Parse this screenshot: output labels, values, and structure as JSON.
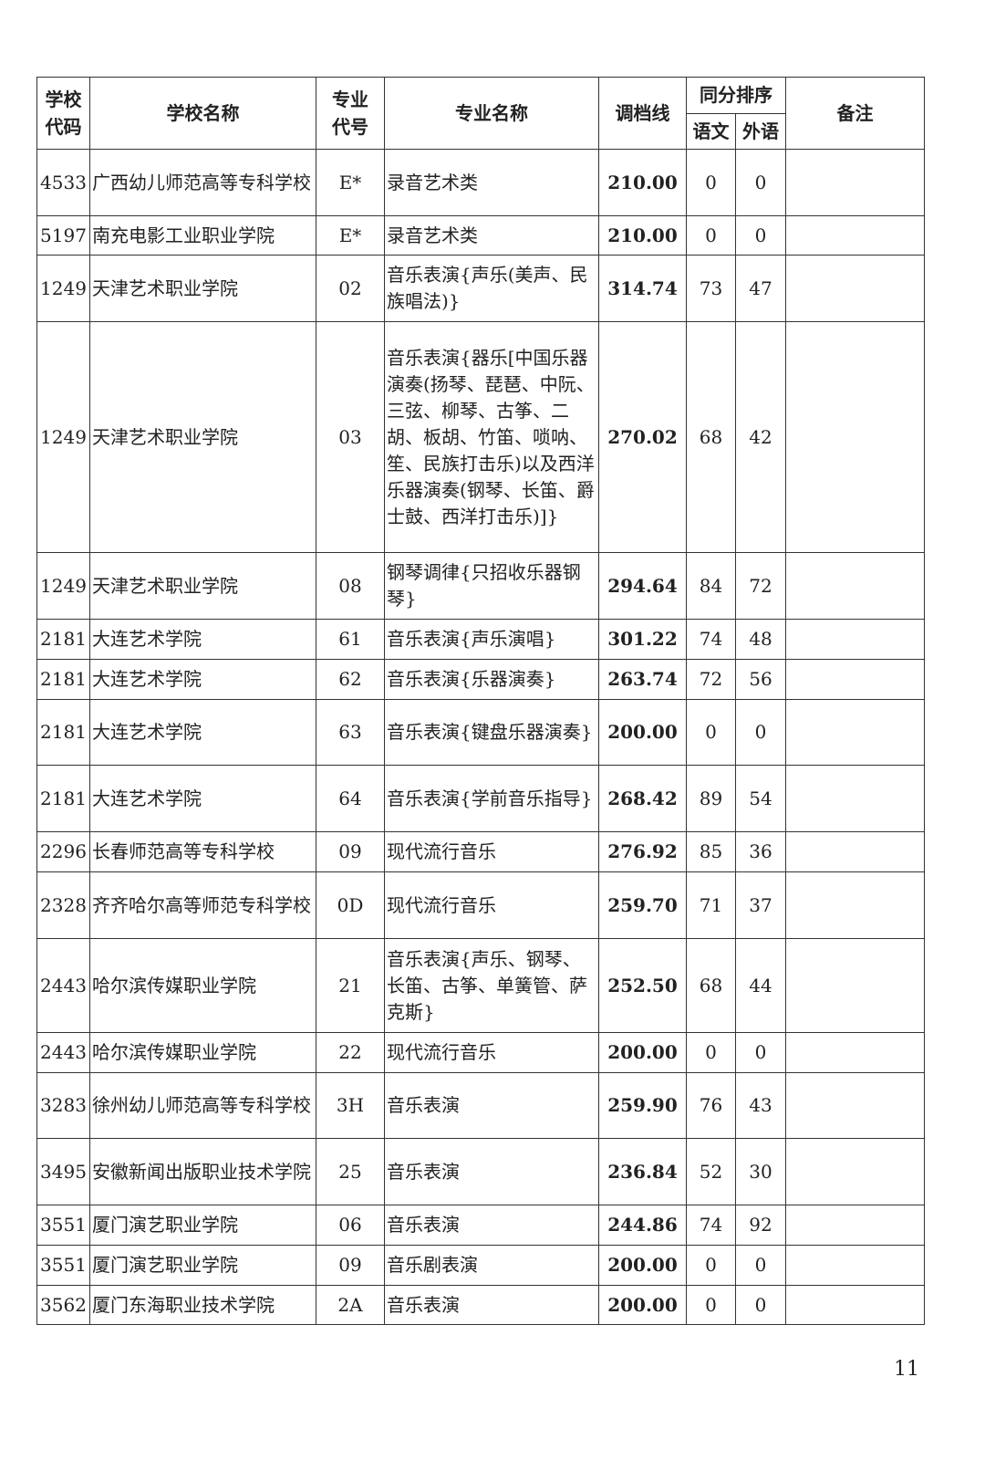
{
  "headers": {
    "school_code": "学校代码",
    "school_name": "学校名称",
    "major_code": "专业代号",
    "major_name": "专业名称",
    "cutoff": "调档线",
    "tie_rank": "同分排序",
    "chinese": "语文",
    "foreign": "外语",
    "remark": "备注"
  },
  "rows": [
    {
      "code": "4533",
      "school": "广西幼儿师范高等专科学校",
      "mcode": "E*",
      "major": "录音艺术类",
      "score": "210.00",
      "cn": "0",
      "fl": "0",
      "remark": ""
    },
    {
      "code": "5197",
      "school": "南充电影工业职业学院",
      "mcode": "E*",
      "major": "录音艺术类",
      "score": "210.00",
      "cn": "0",
      "fl": "0",
      "remark": ""
    },
    {
      "code": "1249",
      "school": "天津艺术职业学院",
      "mcode": "02",
      "major": "音乐表演{声乐(美声、民族唱法)}",
      "score": "314.74",
      "cn": "73",
      "fl": "47",
      "remark": ""
    },
    {
      "code": "1249",
      "school": "天津艺术职业学院",
      "mcode": "03",
      "major": "音乐表演{器乐[中国乐器演奏(扬琴、琵琶、中阮、三弦、柳琴、古筝、二胡、板胡、竹笛、唢呐、笙、民族打击乐)以及西洋乐器演奏(钢琴、长笛、爵士鼓、西洋打击乐)]}",
      "score": "270.02",
      "cn": "68",
      "fl": "42",
      "remark": ""
    },
    {
      "code": "1249",
      "school": "天津艺术职业学院",
      "mcode": "08",
      "major": "钢琴调律{只招收乐器钢琴}",
      "score": "294.64",
      "cn": "84",
      "fl": "72",
      "remark": ""
    },
    {
      "code": "2181",
      "school": "大连艺术学院",
      "mcode": "61",
      "major": "音乐表演{声乐演唱}",
      "score": "301.22",
      "cn": "74",
      "fl": "48",
      "remark": ""
    },
    {
      "code": "2181",
      "school": "大连艺术学院",
      "mcode": "62",
      "major": "音乐表演{乐器演奏}",
      "score": "263.74",
      "cn": "72",
      "fl": "56",
      "remark": ""
    },
    {
      "code": "2181",
      "school": "大连艺术学院",
      "mcode": "63",
      "major": "音乐表演{键盘乐器演奏}",
      "score": "200.00",
      "cn": "0",
      "fl": "0",
      "remark": ""
    },
    {
      "code": "2181",
      "school": "大连艺术学院",
      "mcode": "64",
      "major": "音乐表演{学前音乐指导}",
      "score": "268.42",
      "cn": "89",
      "fl": "54",
      "remark": ""
    },
    {
      "code": "2296",
      "school": "长春师范高等专科学校",
      "mcode": "09",
      "major": "现代流行音乐",
      "score": "276.92",
      "cn": "85",
      "fl": "36",
      "remark": ""
    },
    {
      "code": "2328",
      "school": "齐齐哈尔高等师范专科学校",
      "mcode": "0D",
      "major": "现代流行音乐",
      "score": "259.70",
      "cn": "71",
      "fl": "37",
      "remark": ""
    },
    {
      "code": "2443",
      "school": "哈尔滨传媒职业学院",
      "mcode": "21",
      "major": "音乐表演{声乐、钢琴、长笛、古筝、单簧管、萨克斯}",
      "score": "252.50",
      "cn": "68",
      "fl": "44",
      "remark": ""
    },
    {
      "code": "2443",
      "school": "哈尔滨传媒职业学院",
      "mcode": "22",
      "major": "现代流行音乐",
      "score": "200.00",
      "cn": "0",
      "fl": "0",
      "remark": ""
    },
    {
      "code": "3283",
      "school": "徐州幼儿师范高等专科学校",
      "mcode": "3H",
      "major": "音乐表演",
      "score": "259.90",
      "cn": "76",
      "fl": "43",
      "remark": ""
    },
    {
      "code": "3495",
      "school": "安徽新闻出版职业技术学院",
      "mcode": "25",
      "major": "音乐表演",
      "score": "236.84",
      "cn": "52",
      "fl": "30",
      "remark": ""
    },
    {
      "code": "3551",
      "school": "厦门演艺职业学院",
      "mcode": "06",
      "major": "音乐表演",
      "score": "244.86",
      "cn": "74",
      "fl": "92",
      "remark": ""
    },
    {
      "code": "3551",
      "school": "厦门演艺职业学院",
      "mcode": "09",
      "major": "音乐剧表演",
      "score": "200.00",
      "cn": "0",
      "fl": "0",
      "remark": ""
    },
    {
      "code": "3562",
      "school": "厦门东海职业技术学院",
      "mcode": "2A",
      "major": "音乐表演",
      "score": "200.00",
      "cn": "0",
      "fl": "0",
      "remark": ""
    }
  ],
  "page_number": "11"
}
